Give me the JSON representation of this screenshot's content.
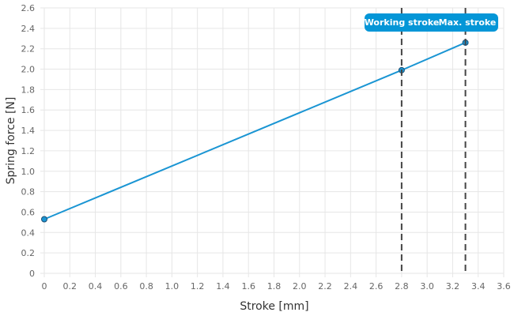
{
  "chart_data": {
    "type": "line",
    "xlabel": "Stroke [mm]",
    "ylabel": "Spring force [N]",
    "xlim": [
      0,
      3.6
    ],
    "ylim": [
      0,
      2.6
    ],
    "x_ticks": [
      "0",
      "0.2",
      "0.4",
      "0.6",
      "0.8",
      "1.0",
      "1.2",
      "1.4",
      "1.6",
      "1.8",
      "2.0",
      "2.2",
      "2.4",
      "2.6",
      "2.8",
      "3.0",
      "3.2",
      "3.4",
      "3.6"
    ],
    "y_ticks": [
      "0",
      "0.2",
      "0.4",
      "0.6",
      "0.8",
      "1.0",
      "1.2",
      "1.4",
      "1.6",
      "1.8",
      "2.0",
      "2.2",
      "2.4",
      "2.6"
    ],
    "grid": true,
    "series": [
      {
        "color": "#1a95d3",
        "points": [
          {
            "x": 0,
            "y": 0.53
          },
          {
            "x": 2.8,
            "y": 1.99
          },
          {
            "x": 3.3,
            "y": 2.26
          }
        ]
      }
    ],
    "markers": [
      {
        "x": 2.8,
        "label": "Working stroke"
      },
      {
        "x": 3.3,
        "label": "Max. stroke"
      }
    ],
    "annotation_color": "#0496d7"
  }
}
